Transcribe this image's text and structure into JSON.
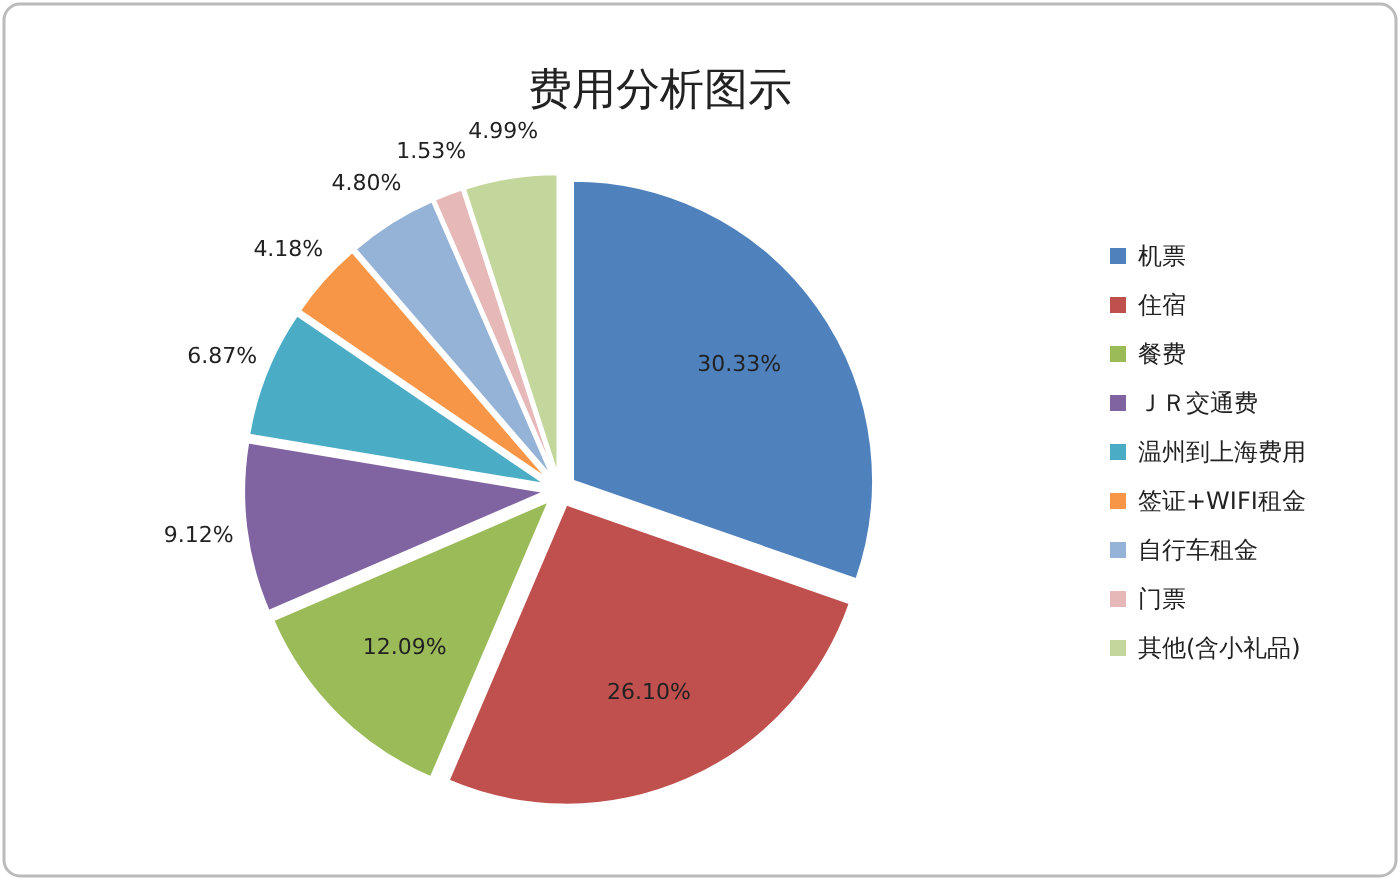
{
  "chart_data": {
    "type": "pie",
    "title": "费用分析图示",
    "categories": [
      "机票",
      "住宿",
      "餐费",
      "ＪＲ交通费",
      "温州到上海费用",
      "签证+WIFI租金",
      "自行车租金",
      "门票",
      "其他(含小礼品)"
    ],
    "values": [
      30.33,
      26.1,
      12.09,
      9.12,
      6.87,
      4.18,
      4.8,
      1.53,
      4.99
    ],
    "value_labels": [
      "30.33%",
      "26.10%",
      "12.09%",
      "9.12%",
      "6.87%",
      "4.18%",
      "4.80%",
      "1.53%",
      "4.99%"
    ],
    "colors": [
      "#4f81bd",
      "#c0504d",
      "#9bbb59",
      "#8064a2",
      "#4bacc6",
      "#f79646",
      "#95b3d7",
      "#e6b9b8",
      "#c3d69b"
    ],
    "legend": "right"
  }
}
